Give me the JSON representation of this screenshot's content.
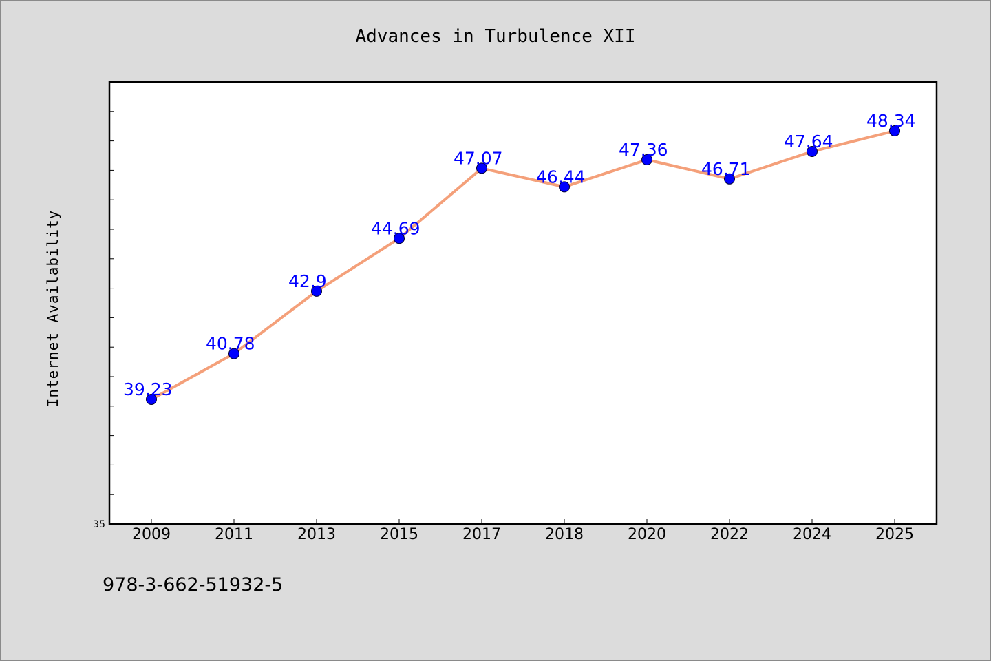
{
  "chart_data": {
    "type": "line",
    "title": "Advances in Turbulence XII",
    "xlabel": "",
    "ylabel": "Internet Availability",
    "categories": [
      "2009",
      "2011",
      "2013",
      "2015",
      "2017",
      "2018",
      "2020",
      "2022",
      "2024",
      "2025"
    ],
    "series": [
      {
        "values": [
          39.23,
          40.78,
          42.9,
          44.69,
          47.07,
          46.44,
          47.36,
          46.71,
          47.64,
          48.34
        ],
        "data_labels": [
          "39.23",
          "40.78",
          "42.9",
          "44.69",
          "47.07",
          "46.44",
          "47.36",
          "46.71",
          "47.64",
          "48.34"
        ],
        "line_color": "#f4a07a",
        "marker_color": "#0000ff"
      }
    ],
    "ylim": [
      35,
      50
    ],
    "y_tick_labels": [
      "35"
    ],
    "grid": false,
    "legend": "none",
    "colors": {
      "background": "#dcdcdc",
      "plot_background": "#ffffff",
      "data_label": "#0000ff"
    }
  },
  "footer": {
    "isbn": "978-3-662-51932-5"
  }
}
